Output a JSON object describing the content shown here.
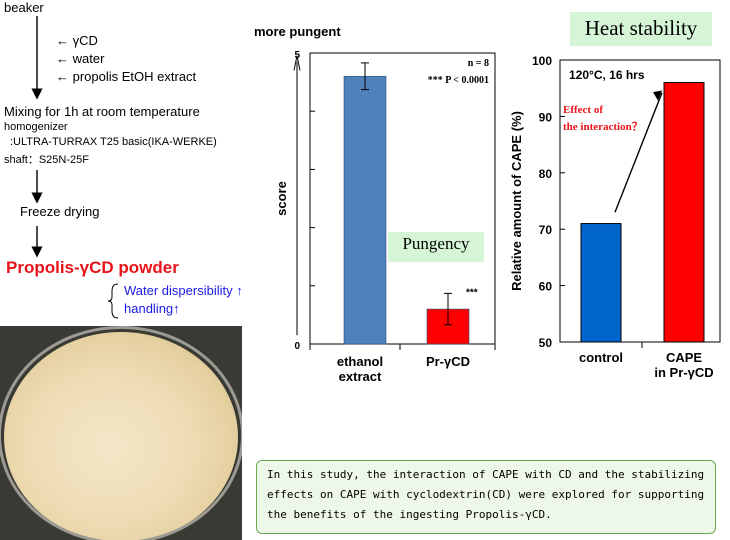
{
  "flowchart": {
    "start": "beaker",
    "inputs": [
      "← γCD",
      "←  water",
      "← propolis EtOH extract"
    ],
    "mixing_title": "Mixing for 1h at room temperature",
    "mixing_detail1": "homogenizer",
    "mixing_detail2": ":ULTRA-TURRAX T25 basic(IKA-WERKE)",
    "mixing_detail3": "shaft：S25N-25F",
    "freeze": "Freeze drying",
    "product": "Propolis-γCD powder",
    "benefit1": "Water dispersibility ↑",
    "benefit2": "handling↑"
  },
  "note_text": "In this study, the interaction of CAPE with CD and the stabilizing effects on CAPE with cyclodextrin(CD) were explored for supporting the benefits of the ingesting Propolis-γCD.",
  "colors": {
    "blue_bar": "#4f81bd",
    "pink_bar": "#ff0000",
    "control_bar": "#0066cc"
  },
  "chart_data": [
    {
      "type": "bar",
      "title": "more pungent",
      "ylabel": "score",
      "ylim": [
        0,
        5
      ],
      "yticks": [
        "5",
        "0"
      ],
      "categories": [
        "ethanol\nextract",
        "Pr-γCD"
      ],
      "values": [
        4.6,
        0.6
      ],
      "errors": [
        0.23,
        0.27
      ],
      "annotations": {
        "n": "n = 8",
        "p": "***  P < 0.0001",
        "star": "***",
        "box": "Pungency"
      }
    },
    {
      "type": "bar",
      "title": "Heat stability",
      "ylabel": "Relative amount of CAPE (%)",
      "ylim": [
        50,
        100
      ],
      "yticks": [
        "100",
        "90",
        "80",
        "70",
        "60",
        "50"
      ],
      "categories": [
        "control",
        "CAPE\nin Pr-γCD"
      ],
      "values": [
        71,
        96
      ],
      "annotations": {
        "condition": "120°C, 16 hrs",
        "effect1": "Effect of",
        "effect2": "the interaction？"
      }
    }
  ]
}
